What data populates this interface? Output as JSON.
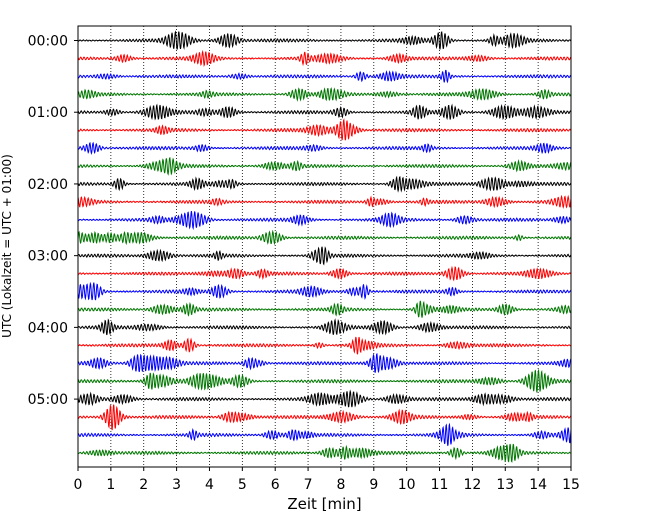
{
  "chart_data": {
    "type": "line",
    "title": "",
    "xlabel": "Zeit  [min]",
    "ylabel": "UTC (Lokalzeit = UTC + 01:00)",
    "xlim": [
      0,
      15
    ],
    "x_ticks": [
      "0",
      "1",
      "2",
      "3",
      "4",
      "5",
      "6",
      "7",
      "8",
      "9",
      "10",
      "11",
      "12",
      "13",
      "14",
      "15"
    ],
    "y_ticks": [
      "00:00",
      "01:00",
      "02:00",
      "03:00",
      "04:00",
      "05:00"
    ],
    "grid": "vertical dotted at each minute",
    "trace_interval_min": 15,
    "trace_colors": [
      "#000000",
      "#ff0000",
      "#0000ff",
      "#007700"
    ],
    "trace_count": 24,
    "series": [
      {
        "start": "00:00",
        "color": "#000000"
      },
      {
        "start": "00:15",
        "color": "#ff0000"
      },
      {
        "start": "00:30",
        "color": "#0000ff"
      },
      {
        "start": "00:45",
        "color": "#007700"
      },
      {
        "start": "01:00",
        "color": "#000000"
      },
      {
        "start": "01:15",
        "color": "#ff0000"
      },
      {
        "start": "01:30",
        "color": "#0000ff"
      },
      {
        "start": "01:45",
        "color": "#007700"
      },
      {
        "start": "02:00",
        "color": "#000000"
      },
      {
        "start": "02:15",
        "color": "#ff0000"
      },
      {
        "start": "02:30",
        "color": "#0000ff"
      },
      {
        "start": "02:45",
        "color": "#007700"
      },
      {
        "start": "03:00",
        "color": "#000000"
      },
      {
        "start": "03:15",
        "color": "#ff0000"
      },
      {
        "start": "03:30",
        "color": "#0000ff"
      },
      {
        "start": "03:45",
        "color": "#007700"
      },
      {
        "start": "04:00",
        "color": "#000000"
      },
      {
        "start": "04:15",
        "color": "#ff0000"
      },
      {
        "start": "04:30",
        "color": "#0000ff"
      },
      {
        "start": "04:45",
        "color": "#007700"
      },
      {
        "start": "05:00",
        "color": "#000000"
      },
      {
        "start": "05:15",
        "color": "#ff0000"
      },
      {
        "start": "05:30",
        "color": "#0000ff"
      },
      {
        "start": "05:45",
        "color": "#007700"
      }
    ]
  }
}
